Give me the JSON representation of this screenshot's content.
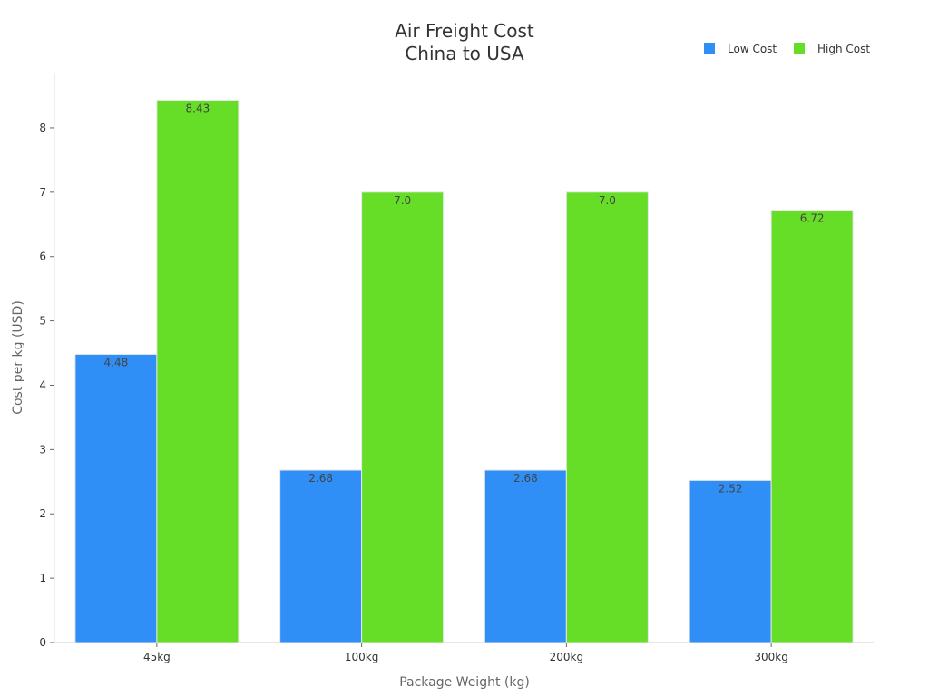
{
  "chart_data": {
    "type": "bar",
    "title": [
      "Air Freight Cost",
      "China to USA"
    ],
    "xlabel": "Package Weight (kg)",
    "ylabel": "Cost per kg (USD)",
    "categories": [
      "45kg",
      "100kg",
      "200kg",
      "300kg"
    ],
    "series": [
      {
        "name": "Low Cost",
        "color": "#2f8ff7",
        "values": [
          4.48,
          2.68,
          2.68,
          2.52
        ],
        "labels": [
          "4.48",
          "2.68",
          "2.68",
          "2.52"
        ]
      },
      {
        "name": "High Cost",
        "color": "#66dd26",
        "values": [
          8.43,
          7.0,
          7.0,
          6.72
        ],
        "labels": [
          "8.43",
          "7.0",
          "7.0",
          "6.72"
        ]
      }
    ],
    "ylim": [
      0,
      8.86
    ],
    "yticks": [
      0,
      1,
      2,
      3,
      4,
      5,
      6,
      7,
      8
    ],
    "grid": false,
    "legend_position": "top-right"
  }
}
